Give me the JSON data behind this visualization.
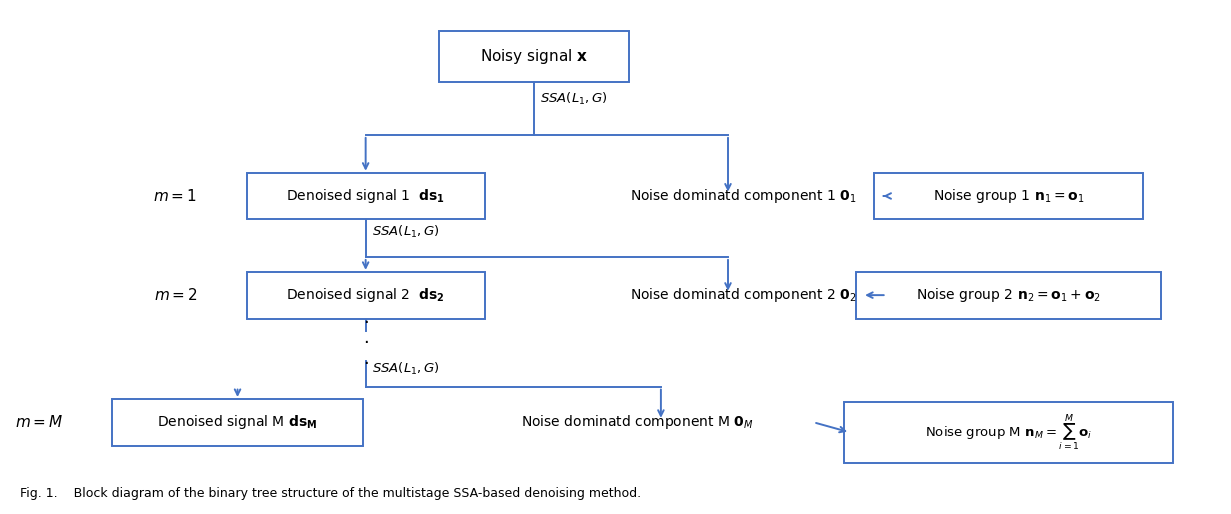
{
  "fig_width": 12.31,
  "fig_height": 5.14,
  "dpi": 100,
  "bg_color": "#ffffff",
  "box_edge_color": "#4472C4",
  "box_face_color": "#ffffff",
  "arrow_color": "#4472C4",
  "text_color": "#000000",
  "lw": 1.4,
  "caption": "Fig. 1.    Block diagram of the binary tree structure of the multistage SSA-based denoising method."
}
